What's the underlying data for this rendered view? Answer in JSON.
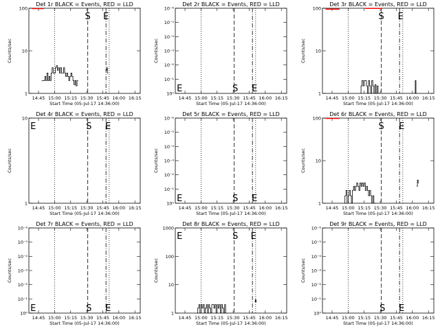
{
  "chart_data": {
    "type": "line",
    "x_ticks": [
      "14:45",
      "15:00",
      "15:15",
      "15:30",
      "15:45",
      "16:00",
      "16:15"
    ],
    "xlabel": "Start Time (05-Jul-17 14:36:00)",
    "ylabel": "Counts/sec",
    "marker_lines": [
      {
        "time": "15:00",
        "style": "dotted"
      },
      {
        "time": "15:31",
        "style": "dashed"
      },
      {
        "time": "15:48",
        "style": "dash-dot"
      },
      {
        "time": "15:51",
        "style": "dotted"
      }
    ],
    "panels": [
      {
        "title": "Det 1r BLACK = Events, RED = LLD",
        "yscale": "log",
        "ylim": [
          1,
          100
        ],
        "y_ticks": [
          "1",
          "10",
          "100"
        ],
        "y_tick_values": [
          1,
          10,
          100
        ],
        "markers": [
          {
            "label": "S",
            "time": "15:31",
            "pos": "top"
          },
          {
            "label": "E",
            "time": "15:48",
            "pos": "top"
          }
        ],
        "lld": {
          "start": "14:39",
          "end": "14:50",
          "value": 98
        },
        "events": {
          "start": "14:48",
          "end": "15:22",
          "values": [
            2,
            2,
            2,
            2.5,
            2,
            3,
            2,
            2.5,
            2,
            3,
            4,
            3,
            3,
            4,
            4.5,
            3.5,
            4,
            3,
            4,
            3,
            3,
            4,
            3,
            2.5,
            3,
            2.5,
            2,
            2.5,
            3,
            2.5,
            2,
            1.6,
            2,
            1.5,
            2
          ]
        },
        "events_extra": {
          "start": "15:48",
          "end": "15:50",
          "values": [
            3.5,
            4,
            3
          ]
        }
      },
      {
        "title": "Det 2r BLACK = Events, RED = LLD",
        "yscale": "log",
        "ylim": [
          1,
          1e-06
        ],
        "y_ticks": [
          "10⁰",
          "10⁻¹",
          "10⁻²",
          "10⁻³",
          "10⁻⁴",
          "10⁻⁵",
          "10⁻⁶"
        ],
        "y_tick_values": [
          1,
          0.1,
          0.01,
          0.001,
          0.0001,
          1e-05,
          1e-06
        ],
        "markers": [
          {
            "label": "E",
            "time": "14:40",
            "pos": "bottom"
          },
          {
            "label": "S",
            "time": "15:32",
            "pos": "bottom"
          },
          {
            "label": "E",
            "time": "15:50",
            "pos": "bottom"
          }
        ]
      },
      {
        "title": "Det 3r BLACK = Events, RED = LLD",
        "yscale": "log",
        "ylim": [
          1,
          100
        ],
        "y_ticks": [
          "1",
          "10",
          "100"
        ],
        "y_tick_values": [
          1,
          10,
          100
        ],
        "markers": [
          {
            "label": "S",
            "time": "15:31",
            "pos": "top"
          },
          {
            "label": "E",
            "time": "15:49",
            "pos": "top"
          }
        ],
        "lld": {
          "start": "14:39",
          "end": "14:52",
          "value": 95
        },
        "lld_extra": {
          "start": "15:16",
          "end": "15:32",
          "value": 99
        },
        "events": {
          "start": "15:11",
          "end": "15:29",
          "values": [
            1,
            1.5,
            2,
            1.5,
            2,
            2,
            1.5,
            1,
            2,
            1.5,
            1,
            2,
            1.5,
            1,
            1.6,
            1,
            1.5,
            1
          ]
        },
        "events_extra": {
          "start": "16:02",
          "end": "16:04",
          "values": [
            1,
            2,
            1
          ]
        }
      },
      {
        "title": "Det 4r BLACK = Events, RED = LLD",
        "yscale": "log",
        "ylim": [
          1,
          10
        ],
        "y_ticks": [
          "1",
          "10"
        ],
        "y_tick_values": [
          1,
          10
        ],
        "markers": [
          {
            "label": "E",
            "time": "14:40",
            "pos": "top"
          },
          {
            "label": "S",
            "time": "15:32",
            "pos": "top"
          },
          {
            "label": "E",
            "time": "15:50",
            "pos": "top"
          }
        ]
      },
      {
        "title": "Det 5r BLACK = Events, RED = LLD",
        "yscale": "log",
        "ylim": [
          1,
          1e-06
        ],
        "y_ticks": [
          "10⁰",
          "10⁻¹",
          "10⁻²",
          "10⁻³",
          "10⁻⁴",
          "10⁻⁵",
          "10⁻⁶"
        ],
        "y_tick_values": [
          1,
          0.1,
          0.01,
          0.001,
          0.0001,
          1e-05,
          1e-06
        ],
        "markers": [
          {
            "label": "E",
            "time": "14:40",
            "pos": "bottom"
          },
          {
            "label": "S",
            "time": "15:32",
            "pos": "bottom"
          },
          {
            "label": "E",
            "time": "15:50",
            "pos": "bottom"
          }
        ]
      },
      {
        "title": "Det 6r BLACK = Events, RED = LLD",
        "yscale": "log",
        "ylim": [
          1,
          100
        ],
        "y_ticks": [
          "1",
          "10",
          "100"
        ],
        "y_tick_values": [
          1,
          10,
          100
        ],
        "markers": [
          {
            "label": "S",
            "time": "15:31",
            "pos": "top"
          },
          {
            "label": "E",
            "time": "15:50",
            "pos": "top"
          }
        ],
        "lld": {
          "start": "14:39",
          "end": "14:52",
          "value": 98
        },
        "events": {
          "start": "14:56",
          "end": "15:26",
          "values": [
            1,
            1.5,
            2,
            1,
            1.5,
            2,
            1.5,
            1,
            2,
            2.5,
            2,
            2.5,
            3,
            2.5,
            2,
            3,
            2.5,
            3,
            2.5,
            3,
            2,
            2.5,
            2,
            1.5,
            2,
            1.5,
            1,
            1.5,
            1,
            1
          ]
        },
        "events_extra": {
          "start": "16:04",
          "end": "16:06",
          "values": [
            2.5,
            3.5,
            3
          ]
        }
      },
      {
        "title": "Det 7r BLACK = Events, RED = LLD",
        "yscale": "log",
        "ylim": [
          1,
          1e-06
        ],
        "y_ticks": [
          "10⁰",
          "10⁻¹",
          "10⁻²",
          "10⁻³",
          "10⁻⁴",
          "10⁻⁵",
          "10⁻⁶"
        ],
        "y_tick_values": [
          1,
          0.1,
          0.01,
          0.001,
          0.0001,
          1e-05,
          1e-06
        ],
        "markers": [
          {
            "label": "E",
            "time": "14:40",
            "pos": "bottom"
          },
          {
            "label": "S",
            "time": "15:32",
            "pos": "bottom"
          },
          {
            "label": "E",
            "time": "15:50",
            "pos": "bottom"
          }
        ]
      },
      {
        "title": "Det 8r BLACK = Events, RED = LLD",
        "yscale": "log",
        "ylim": [
          1,
          1000
        ],
        "y_ticks": [
          "1",
          "10",
          "100",
          "1000"
        ],
        "y_tick_values": [
          1,
          10,
          100,
          1000
        ],
        "markers": [
          {
            "label": "E",
            "time": "14:40",
            "pos": "top"
          },
          {
            "label": "S",
            "time": "15:32",
            "pos": "top"
          },
          {
            "label": "E",
            "time": "15:49",
            "pos": "top"
          }
        ],
        "events": {
          "start": "14:56",
          "end": "15:24",
          "values": [
            1,
            1.5,
            2,
            1,
            2,
            1.5,
            2,
            1,
            1.5,
            2,
            1,
            2,
            1.5,
            1,
            2,
            2,
            1.5,
            2,
            1,
            2,
            1.5,
            2,
            1,
            2,
            1.5,
            1,
            2,
            1
          ]
        },
        "events_extra": {
          "start": "15:50",
          "end": "15:52",
          "values": [
            2.5,
            3,
            2.5
          ]
        }
      },
      {
        "title": "Det 9r BLACK = Events, RED = LLD",
        "yscale": "log",
        "ylim": [
          1,
          1e-06
        ],
        "y_ticks": [
          "10⁰",
          "10⁻¹",
          "10⁻²",
          "10⁻³",
          "10⁻⁴",
          "10⁻⁵",
          "10⁻⁶"
        ],
        "y_tick_values": [
          1,
          0.1,
          0.01,
          0.001,
          0.0001,
          1e-05,
          1e-06
        ],
        "markers": [
          {
            "label": "S",
            "time": "15:32",
            "pos": "bottom"
          },
          {
            "label": "E",
            "time": "15:50",
            "pos": "bottom"
          }
        ]
      }
    ]
  }
}
